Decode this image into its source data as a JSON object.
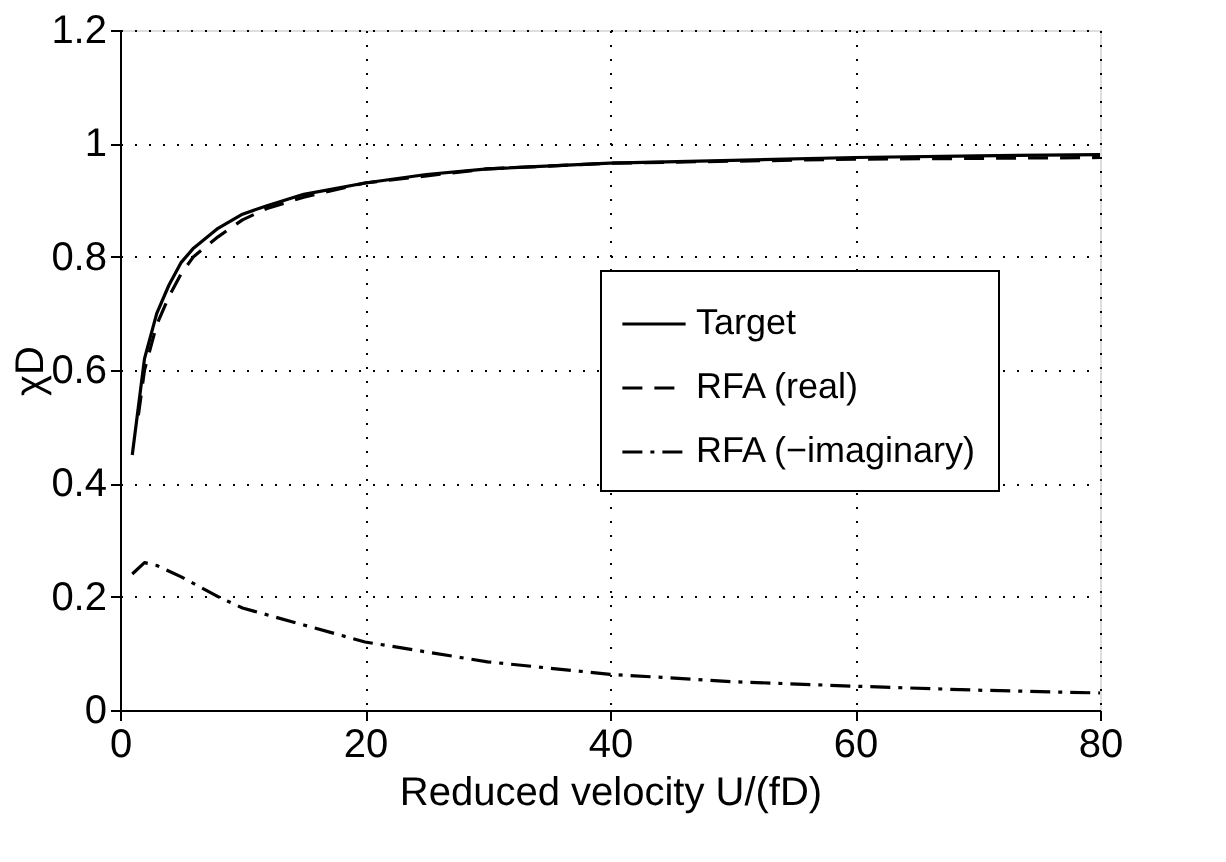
{
  "chart_data": {
    "type": "line",
    "xlabel": "Reduced velocity U/(fD)",
    "ylabel": "χD",
    "xlim": [
      0,
      80
    ],
    "xticks": [
      0,
      20,
      40,
      60,
      80
    ],
    "ylim": [
      0,
      1.2
    ],
    "yticks": [
      0,
      0.2,
      0.4,
      0.6,
      0.8,
      1,
      1.2
    ],
    "grid": true,
    "legend": "right",
    "series": [
      {
        "name": "Target",
        "color": "#000000",
        "line_style": "solid",
        "x": [
          1,
          2,
          3,
          4,
          5,
          6,
          8,
          10,
          12,
          15,
          20,
          25,
          30,
          40,
          50,
          60,
          70,
          80
        ],
        "values": [
          0.45,
          0.62,
          0.7,
          0.75,
          0.79,
          0.815,
          0.85,
          0.875,
          0.89,
          0.91,
          0.93,
          0.945,
          0.955,
          0.965,
          0.97,
          0.975,
          0.978,
          0.98
        ]
      },
      {
        "name": "RFA (real)",
        "color": "#000000",
        "line_style": "dashed",
        "x": [
          1.5,
          2,
          3,
          4,
          5,
          6,
          8,
          10,
          12,
          15,
          20,
          30,
          40,
          60,
          80
        ],
        "values": [
          0.52,
          0.6,
          0.68,
          0.73,
          0.77,
          0.8,
          0.835,
          0.865,
          0.885,
          0.905,
          0.93,
          0.955,
          0.965,
          0.972,
          0.975
        ]
      },
      {
        "name": "RFA (−imaginary)",
        "color": "#000000",
        "line_style": "dashdot",
        "x": [
          1,
          2,
          3,
          5,
          8,
          10,
          15,
          20,
          30,
          40,
          50,
          60,
          70,
          80
        ],
        "values": [
          0.24,
          0.26,
          0.255,
          0.235,
          0.2,
          0.18,
          0.15,
          0.12,
          0.085,
          0.063,
          0.05,
          0.042,
          0.035,
          0.03
        ]
      }
    ]
  }
}
